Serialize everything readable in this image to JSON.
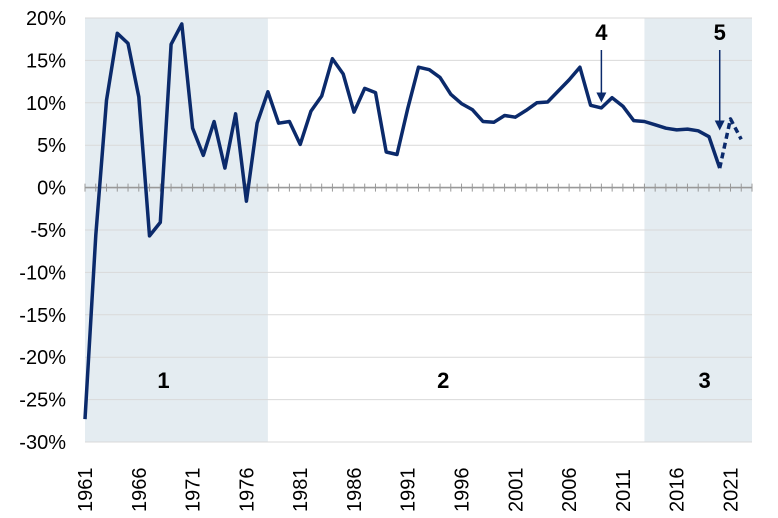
{
  "chart_data": {
    "type": "line",
    "title": "",
    "xlabel": "",
    "ylabel": "",
    "xlim": [
      1961,
      2023
    ],
    "ylim": [
      -30,
      20
    ],
    "y_ticks": [
      20,
      15,
      10,
      5,
      0,
      -5,
      -10,
      -15,
      -20,
      -25,
      -30
    ],
    "y_tick_labels": [
      "20%",
      "15%",
      "10%",
      "5%",
      "0%",
      "-5%",
      "-10%",
      "-15%",
      "-20%",
      "-25%",
      "-30%"
    ],
    "x_ticks": [
      1961,
      1966,
      1971,
      1976,
      1981,
      1986,
      1991,
      1996,
      2001,
      2006,
      2011,
      2016,
      2021
    ],
    "x_tick_labels": [
      "1961",
      "1966",
      "1971",
      "1976",
      "1981",
      "1986",
      "1991",
      "1996",
      "2001",
      "2006",
      "2011",
      "2016",
      "2021"
    ],
    "grid": "horizontal",
    "colors": {
      "line": "#0b2a6b",
      "shade": "#e4ecf1",
      "grid": "#d9d9d9",
      "zero_line": "#999999"
    },
    "shaded_periods": [
      {
        "label": "1",
        "start": 1961,
        "end": 1978
      },
      {
        "label": "2",
        "start": 1978,
        "end": 2013
      },
      {
        "label": "3",
        "start": 2013,
        "end": 2023
      }
    ],
    "callouts": [
      {
        "label": "4",
        "x": 2009,
        "y": 9.8
      },
      {
        "label": "5",
        "x": 2020,
        "y": 6.5
      }
    ],
    "series": [
      {
        "x": [
          1961,
          1962,
          1963,
          1964,
          1965,
          1966,
          1967,
          1968,
          1969,
          1970,
          1971,
          1972,
          1973,
          1974,
          1975,
          1976,
          1977,
          1978,
          1979,
          1980,
          1981,
          1982,
          1983,
          1984,
          1985,
          1986,
          1987,
          1988,
          1989,
          1990,
          1991,
          1992,
          1993,
          1994,
          1995,
          1996,
          1997,
          1998,
          1999,
          2000,
          2001,
          2002,
          2003,
          2004,
          2005,
          2006,
          2007,
          2008,
          2009,
          2010,
          2011,
          2012,
          2013,
          2014,
          2015,
          2016,
          2017,
          2018,
          2019,
          2020
        ],
        "y": [
          -27.3,
          -5.6,
          10.3,
          18.2,
          17.0,
          10.7,
          -5.7,
          -4.1,
          16.9,
          19.3,
          7.0,
          3.8,
          7.8,
          2.3,
          8.7,
          -1.6,
          7.6,
          11.3,
          7.6,
          7.8,
          5.1,
          9.0,
          10.8,
          15.2,
          13.4,
          8.9,
          11.7,
          11.2,
          4.2,
          3.9,
          9.3,
          14.2,
          13.9,
          13.0,
          11.0,
          9.9,
          9.2,
          7.8,
          7.7,
          8.5,
          8.3,
          9.1,
          10.0,
          10.1,
          11.4,
          12.7,
          14.2,
          9.7,
          9.4,
          10.6,
          9.6,
          7.9,
          7.8,
          7.4,
          7.0,
          6.8,
          6.9,
          6.7,
          6.0,
          2.3
        ]
      },
      {
        "x": [
          2020,
          2021,
          2022
        ],
        "y": [
          2.3,
          8.1,
          5.7
        ],
        "style": "dashed"
      }
    ]
  }
}
